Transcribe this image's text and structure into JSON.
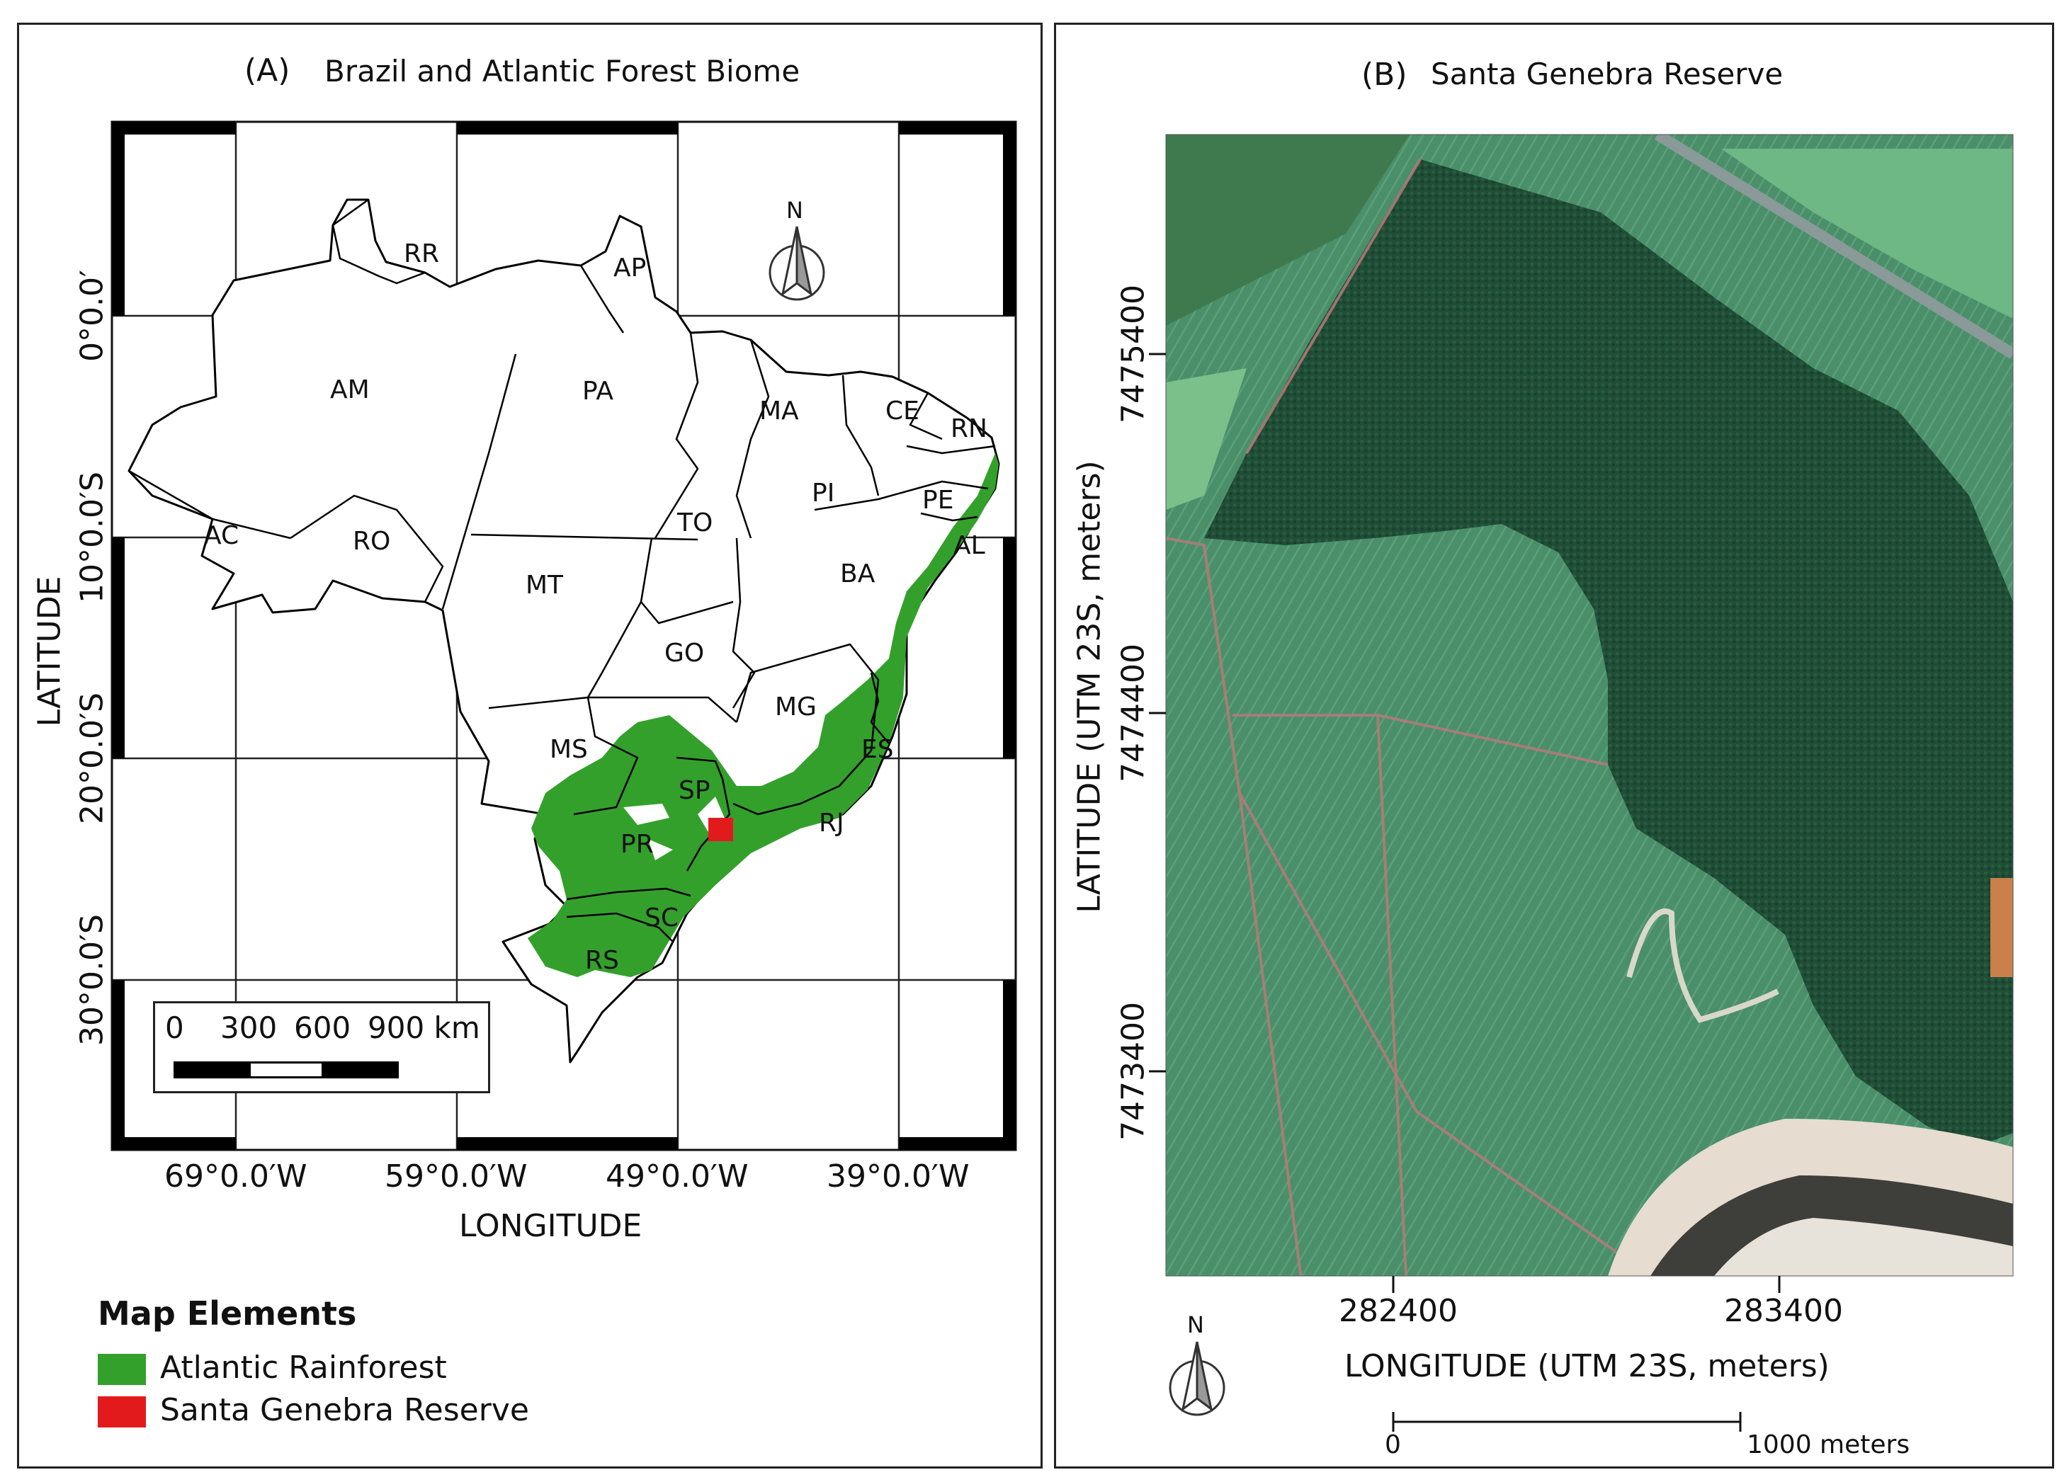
{
  "panel_a": {
    "letter": "(A)",
    "title": "Brazil and Atlantic Forest Biome",
    "xlabel": "LONGITUDE",
    "ylabel": "LATITUDE",
    "lon_ticks": [
      "69°0.0′W",
      "59°0.0′W",
      "49°0.0′W",
      "39°0.0′W"
    ],
    "lat_ticks": [
      "0°0.0′",
      "10°0.0′S",
      "20°0.0′S",
      "30°0.0′S"
    ],
    "north_label": "N",
    "scale_bar": {
      "labels": [
        "0",
        "300",
        "600",
        "900 km"
      ]
    },
    "states": [
      "RR",
      "AP",
      "AM",
      "PA",
      "MA",
      "CE",
      "RN",
      "PI",
      "PE",
      "AL",
      "AC",
      "RO",
      "TO",
      "BA",
      "MT",
      "GO",
      "MG",
      "ES",
      "MS",
      "SP",
      "RJ",
      "PR",
      "SC",
      "RS"
    ]
  },
  "legend": {
    "title": "Map Elements",
    "items": [
      {
        "label": "Atlantic Rainforest",
        "color": "#33a02c"
      },
      {
        "label": "Santa Genebra Reserve",
        "color": "#e31a1c"
      }
    ]
  },
  "panel_b": {
    "letter": "(B)",
    "title": "Santa Genebra Reserve",
    "xlabel": "LONGITUDE (UTM 23S, meters)",
    "ylabel": "LATITUDE (UTM 23S, meters)",
    "x_ticks": [
      "282400",
      "283400"
    ],
    "y_ticks": [
      "7475400",
      "7474400",
      "7473400"
    ],
    "north_label": "N",
    "scale_bar": {
      "labels": [
        "0",
        "1000 meters"
      ]
    }
  }
}
